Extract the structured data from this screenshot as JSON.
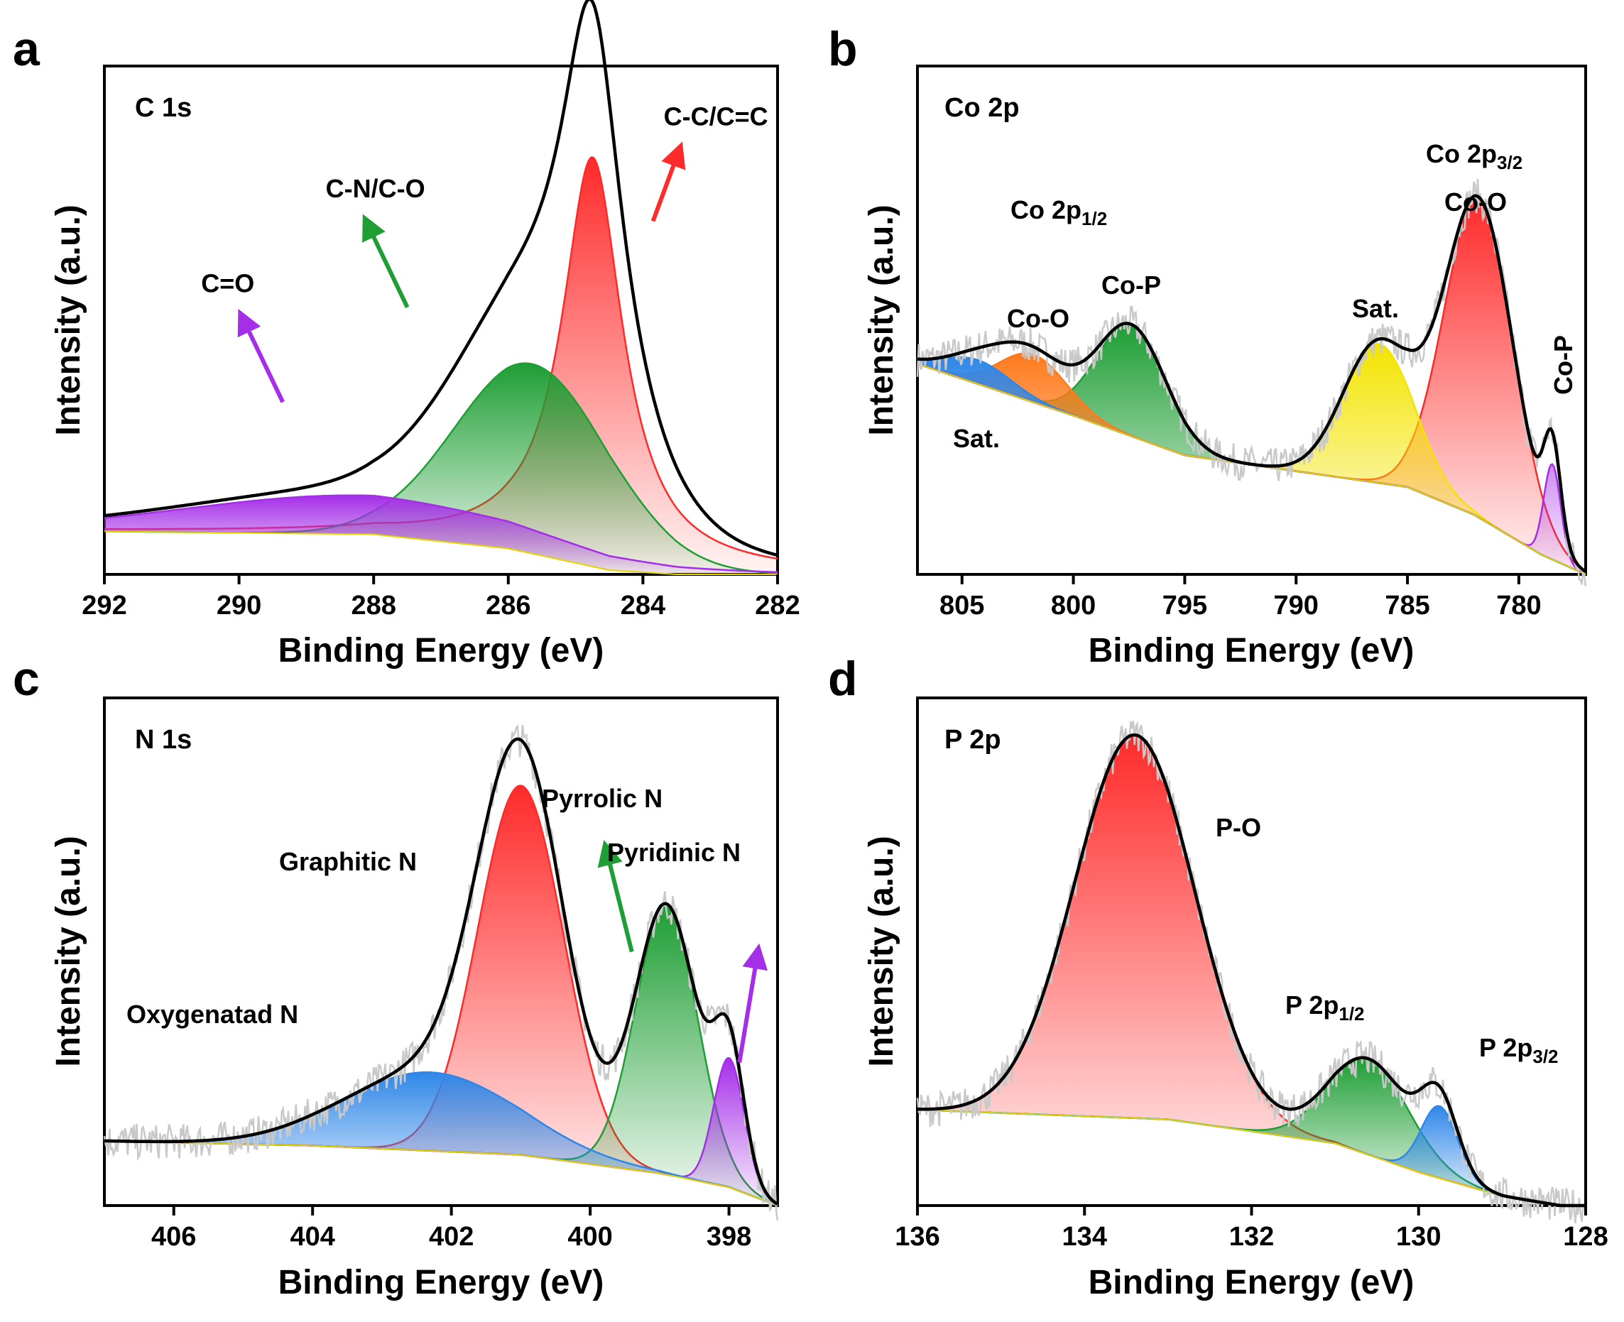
{
  "chart_data": [
    {
      "type": "line",
      "panel": "a",
      "title": "C 1s",
      "xlabel": "Binding Energy (eV)",
      "ylabel": "Intensity (a.u.)",
      "xlim": [
        292,
        282
      ],
      "ylim": [
        0,
        1.18
      ],
      "xticks": [
        "292",
        "290",
        "288",
        "286",
        "284",
        "282"
      ],
      "background": [
        [
          292,
          0.1
        ],
        [
          288,
          0.093
        ],
        [
          286,
          0.06
        ],
        [
          284.5,
          0.01
        ],
        [
          283.5,
          0.0
        ],
        [
          282,
          0.0
        ]
      ],
      "components": [
        {
          "name": "C-C/C=C",
          "color": "#ff2a2a",
          "center": 284.75,
          "height": 0.95,
          "width": 0.55,
          "shape": "lorentz"
        },
        {
          "name": "C-N/C-O",
          "color": "#1e9e34",
          "center": 285.65,
          "height": 0.44,
          "width": 1.15,
          "shape": "gauss"
        },
        {
          "name": "C=O",
          "color": "#a52ee8",
          "center": 288.2,
          "height": 0.09,
          "width": 2.6,
          "shape": "gauss"
        }
      ],
      "noise": false,
      "annotations": [
        {
          "text": "C-C/C=C",
          "color": "#ff2a2a",
          "x": 283.85,
          "y": 0.82
        },
        {
          "text": "C-N/C-O",
          "color": "#1e9e34",
          "x": 287.5,
          "y": 0.62
        },
        {
          "text": "C=O",
          "color": "#a52ee8",
          "x": 289.35,
          "y": 0.4
        }
      ]
    },
    {
      "type": "line",
      "panel": "b",
      "title": "Co 2p",
      "xlabel": "Binding Energy (eV)",
      "ylabel": "Intensity (a.u.)",
      "xlim": [
        807,
        777
      ],
      "ylim": [
        0,
        1.28
      ],
      "xticks": [
        "805",
        "800",
        "795",
        "790",
        "785",
        "780"
      ],
      "background": [
        [
          807,
          0.53
        ],
        [
          800,
          0.4
        ],
        [
          795,
          0.3
        ],
        [
          790,
          0.26
        ],
        [
          785,
          0.22
        ],
        [
          782,
          0.15
        ],
        [
          779,
          0.05
        ],
        [
          777,
          0.0
        ]
      ],
      "components": [
        {
          "name": "Co-O",
          "color": "#ff2a2a",
          "center": 781.8,
          "height": 0.8,
          "width": 1.55,
          "shape": "gauss"
        },
        {
          "name": "Sat.",
          "color": "#f3e400",
          "center": 786.3,
          "height": 0.35,
          "width": 1.6,
          "shape": "gauss"
        },
        {
          "name": "Co-P",
          "color": "#1e9e34",
          "center": 797.4,
          "height": 0.28,
          "width": 1.55,
          "shape": "gauss"
        },
        {
          "name": "Co-O",
          "color": "#ff7a1c",
          "center": 801.8,
          "height": 0.12,
          "width": 1.5,
          "shape": "gauss"
        },
        {
          "name": "Sat.",
          "color": "#2f87e8",
          "center": 804.3,
          "height": 0.06,
          "width": 1.5,
          "shape": "gauss"
        },
        {
          "name": "Co-P",
          "color": "#a52ee8",
          "center": 778.5,
          "height": 0.24,
          "width": 0.38,
          "shape": "gauss"
        }
      ],
      "noise": true,
      "annotations": [],
      "labels": {
        "co2p12_main": "Co 2p",
        "co2p12_sub": "1/2",
        "co2p32_main": "Co 2p",
        "co2p32_sub": "3/2",
        "coo_left": "Co-O",
        "cop_left": "Co-P",
        "sat_left": "Sat.",
        "sat_mid": "Sat.",
        "coo_right": "Co-O",
        "cop_right": "Co-P"
      }
    },
    {
      "type": "line",
      "panel": "c",
      "title": "N 1s",
      "xlabel": "Binding Energy (eV)",
      "ylabel": "Intensity (a.u.)",
      "xlim": [
        407,
        397.3
      ],
      "ylim": [
        0,
        1.1
      ],
      "xticks": [
        "406",
        "404",
        "402",
        "400",
        "398"
      ],
      "background": [
        [
          407,
          0.14
        ],
        [
          404,
          0.13
        ],
        [
          401,
          0.11
        ],
        [
          399,
          0.07
        ],
        [
          398,
          0.04
        ],
        [
          397.3,
          0.0
        ]
      ],
      "components": [
        {
          "name": "Graphitic N",
          "color": "#ff2a2a",
          "center": 401.0,
          "height": 0.8,
          "width": 0.62,
          "shape": "gauss"
        },
        {
          "name": "Pyrrolic N",
          "color": "#1e9e34",
          "center": 398.9,
          "height": 0.58,
          "width": 0.45,
          "shape": "gauss"
        },
        {
          "name": "Pyridinic N",
          "color": "#a52ee8",
          "center": 398.0,
          "height": 0.28,
          "width": 0.22,
          "shape": "gauss"
        },
        {
          "name": "Oxygenatad N",
          "color": "#2f87e8",
          "center": 402.3,
          "height": 0.17,
          "width": 1.25,
          "shape": "gauss"
        }
      ],
      "noise": true,
      "annotations": [
        {
          "text": "Pyrrolic N",
          "color": "#1e9e34",
          "x": 399.4,
          "y": 0.55
        },
        {
          "text": "Pyridinic N",
          "color": "#a52ee8",
          "x": 397.85,
          "y": 0.31
        }
      ],
      "labels": {
        "graphitic": "Graphitic N",
        "pyrrolic": "Pyrrolic N",
        "pyridinic": "Pyridinic N",
        "oxygenated": "Oxygenatad N"
      }
    },
    {
      "type": "line",
      "panel": "d",
      "title": "P 2p",
      "xlabel": "Binding Energy (eV)",
      "ylabel": "Intensity (a.u.)",
      "xlim": [
        136,
        128
      ],
      "ylim": [
        0,
        1.06
      ],
      "xticks": [
        "136",
        "134",
        "132",
        "130",
        "128"
      ],
      "background": [
        [
          136,
          0.2
        ],
        [
          133,
          0.18
        ],
        [
          131,
          0.13
        ],
        [
          130,
          0.07
        ],
        [
          129,
          0.02
        ],
        [
          128.3,
          0.0
        ],
        [
          128,
          0.0
        ]
      ],
      "components": [
        {
          "name": "P-O",
          "color": "#ff2a2a",
          "center": 133.4,
          "height": 0.8,
          "width": 0.72,
          "shape": "gauss"
        },
        {
          "name": "P 2p1/2",
          "color": "#1e9e34",
          "center": 130.6,
          "height": 0.2,
          "width": 0.48,
          "shape": "gauss"
        },
        {
          "name": "P 2p3/2",
          "color": "#2f87e8",
          "center": 129.75,
          "height": 0.15,
          "width": 0.22,
          "shape": "gauss"
        }
      ],
      "noise": true,
      "annotations": [],
      "labels": {
        "po": "P-O",
        "p12_main": "P 2p",
        "p12_sub": "1/2",
        "p32_main": "P 2p",
        "p32_sub": "3/2"
      }
    }
  ]
}
